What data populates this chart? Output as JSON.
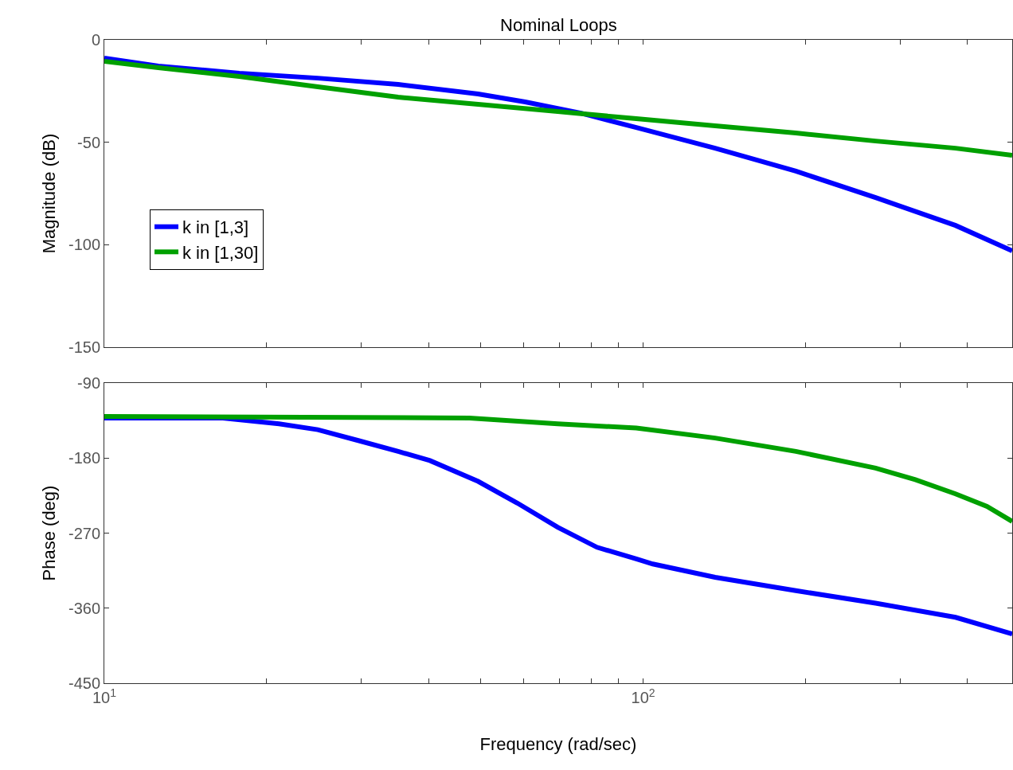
{
  "chart_data": [
    {
      "type": "line",
      "title": "Nominal Loops",
      "ylabel": "Magnitude (dB)",
      "log": "x",
      "legend": "left",
      "tick_labels": "y",
      "marker": "none",
      "line_style": "solid",
      "xlim": [
        10,
        484
      ],
      "xticks": [
        {
          "value": 10,
          "label": null
        },
        {
          "value": 20,
          "label": null
        },
        {
          "value": 30,
          "label": null
        },
        {
          "value": 40,
          "label": null
        },
        {
          "value": 50,
          "label": null
        },
        {
          "value": 60,
          "label": null
        },
        {
          "value": 70,
          "label": null
        },
        {
          "value": 80,
          "label": null
        },
        {
          "value": 90,
          "label": null
        },
        {
          "value": 100,
          "label": null
        },
        {
          "value": 200,
          "label": null
        },
        {
          "value": 300,
          "label": null
        },
        {
          "value": 400,
          "label": null
        }
      ],
      "ylim": [
        -150,
        0
      ],
      "yticks": [
        0,
        -50,
        -100,
        -150
      ],
      "series": [
        {
          "name": "k in [1,3]",
          "color": "#0000ff",
          "x": [
            10,
            12.6,
            17.8,
            24.9,
            35.1,
            49.4,
            60.4,
            76.7,
            97.1,
            136,
            192,
            270,
            380,
            484
          ],
          "values": [
            -8.9,
            -12.8,
            -16.3,
            -18.7,
            -21.8,
            -26.4,
            -30.3,
            -35.8,
            -42.8,
            -52.9,
            -64.1,
            -77,
            -90.6,
            -103
          ]
        },
        {
          "name": "k in [1,30]",
          "color": "#00a000",
          "x": [
            10,
            12.6,
            17.8,
            24.9,
            35.1,
            49.4,
            69.4,
            97.1,
            136,
            192,
            270,
            380,
            484
          ],
          "values": [
            -10.5,
            -13.6,
            -17.9,
            -22.9,
            -28,
            -31.5,
            -35,
            -38.5,
            -42,
            -45.5,
            -49.4,
            -52.9,
            -56.4
          ]
        }
      ]
    },
    {
      "type": "line",
      "xlabel": "Frequency (rad/sec)",
      "ylabel": "Phase (deg)",
      "log": "x",
      "marker": "none",
      "line_style": "solid",
      "xlim": [
        10,
        484
      ],
      "xticks": [
        {
          "value": 10,
          "label": "10$^{1}$"
        },
        {
          "value": 20,
          "label": null
        },
        {
          "value": 30,
          "label": null
        },
        {
          "value": 40,
          "label": null
        },
        {
          "value": 50,
          "label": null
        },
        {
          "value": 60,
          "label": null
        },
        {
          "value": 70,
          "label": null
        },
        {
          "value": 80,
          "label": null
        },
        {
          "value": 90,
          "label": null
        },
        {
          "value": 100,
          "label": "10$^{2}$"
        },
        {
          "value": 200,
          "label": null
        },
        {
          "value": 300,
          "label": null
        },
        {
          "value": 400,
          "label": null
        }
      ],
      "ylim": [
        -450,
        -90
      ],
      "yticks": [
        -90,
        -180,
        -270,
        -360,
        -450
      ],
      "series": [
        {
          "color": "#0000ff",
          "x": [
            10,
            16.6,
            21.1,
            24.9,
            29.6,
            35.1,
            40.2,
            49.4,
            58.4,
            69.4,
            82.1,
            97.1,
            104.2,
            136,
            192,
            270,
            380,
            484
          ],
          "values": [
            -132,
            -132,
            -139,
            -146,
            -159,
            -172,
            -183,
            -208,
            -234,
            -263,
            -287,
            -301,
            -307,
            -323,
            -339,
            -354,
            -371,
            -391
          ]
        },
        {
          "color": "#00a000",
          "x": [
            10,
            47.6,
            69.4,
            97.1,
            136,
            192,
            270,
            320,
            380,
            434.5,
            484
          ],
          "values": [
            -130,
            -132,
            -139,
            -144,
            -156,
            -172,
            -192,
            -206,
            -223,
            -238,
            -256
          ]
        }
      ]
    }
  ]
}
